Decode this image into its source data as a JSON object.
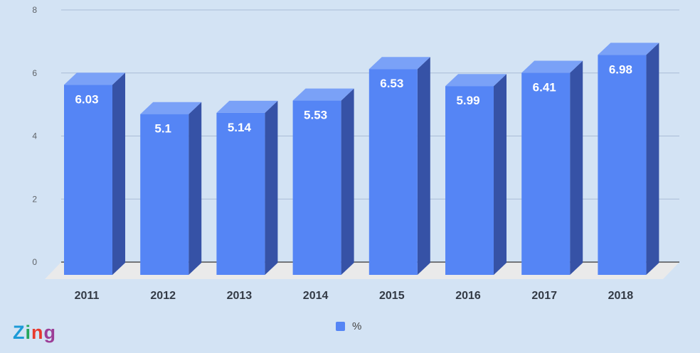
{
  "chart_data": {
    "type": "bar",
    "categories": [
      "2011",
      "2012",
      "2013",
      "2014",
      "2015",
      "2016",
      "2017",
      "2018"
    ],
    "values": [
      6.03,
      5.1,
      5.14,
      5.53,
      6.53,
      5.99,
      6.41,
      6.98
    ],
    "data_labels": [
      "6.03",
      "5.1",
      "5.14",
      "5.53",
      "6.53",
      "5.99",
      "6.41",
      "6.98"
    ],
    "series": [
      {
        "name": "%",
        "values": [
          6.03,
          5.1,
          5.14,
          5.53,
          6.53,
          5.99,
          6.41,
          6.98
        ]
      }
    ],
    "ylim": [
      0,
      8
    ],
    "yticks": [
      "0",
      "2",
      "4",
      "6",
      "8"
    ],
    "grid": true,
    "style": "3d-column",
    "legend_position": "bottom",
    "colors": {
      "front": "#5585f5",
      "side": "#3652a6",
      "top": "#7aa1f7",
      "floor": "#eaeaea",
      "grid": "#aabcd6",
      "baseline": "#333333"
    }
  },
  "legend": {
    "label": "%",
    "color": "#5585f5"
  },
  "logo": {
    "text": "Zing",
    "letters": [
      {
        "char": "Z",
        "color": "#1d9bd7"
      },
      {
        "char": "i",
        "color": "#24a65b"
      },
      {
        "char": "n",
        "color": "#e8392d"
      },
      {
        "char": "g",
        "color": "#9c3e97"
      }
    ]
  }
}
